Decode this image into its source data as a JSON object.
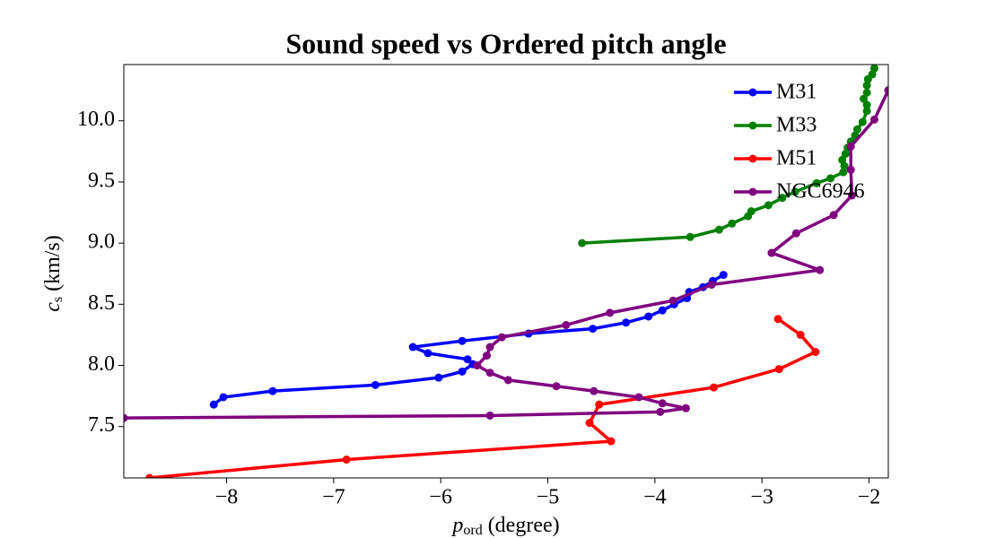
{
  "chart_data": {
    "type": "line",
    "title": "Sound speed vs Ordered pitch angle",
    "xlabel_symbol": "p",
    "xlabel_subscript": "ord",
    "xlabel_unit": "(degree)",
    "ylabel_symbol": "c",
    "ylabel_subscript": "s",
    "ylabel_unit": "(km/s)",
    "xlim": [
      -8.96,
      -1.82
    ],
    "ylim": [
      7.08,
      10.46
    ],
    "xticks": [
      {
        "value": -8,
        "label": "−8"
      },
      {
        "value": -7,
        "label": "−7"
      },
      {
        "value": -6,
        "label": "−6"
      },
      {
        "value": -5,
        "label": "−5"
      },
      {
        "value": -4,
        "label": "−4"
      },
      {
        "value": -3,
        "label": "−3"
      },
      {
        "value": -2,
        "label": "−2"
      }
    ],
    "yticks": [
      7.5,
      {
        "value": 8,
        "label": "8.0"
      },
      8.5,
      {
        "value": 9,
        "label": "9.0"
      },
      9.5,
      {
        "value": 10,
        "label": "10.0"
      }
    ],
    "grid": false,
    "legend": "upper right",
    "series": [
      {
        "name": "M31",
        "color": "#0000ff",
        "x": [
          -8.12,
          -8.03,
          -7.57,
          -6.61,
          -6.02,
          -5.8,
          -5.7,
          -5.75,
          -6.12,
          -6.26,
          -5.8,
          -5.18,
          -4.58,
          -4.27,
          -4.06,
          -3.93,
          -3.82,
          -3.7,
          -3.68,
          -3.55,
          -3.46,
          -3.36
        ],
        "values": [
          7.68,
          7.74,
          7.79,
          7.84,
          7.9,
          7.95,
          8.01,
          8.05,
          8.1,
          8.15,
          8.2,
          8.26,
          8.3,
          8.35,
          8.4,
          8.45,
          8.5,
          8.55,
          8.6,
          8.64,
          8.69,
          8.74
        ]
      },
      {
        "name": "M33",
        "color": "#008000",
        "x": [
          -4.68,
          -3.67,
          -3.4,
          -3.28,
          -3.13,
          -3.1,
          -2.94,
          -2.81,
          -2.69,
          -2.49,
          -2.36,
          -2.24,
          -2.23,
          -2.25,
          -2.22,
          -2.2,
          -2.17,
          -2.13,
          -2.11,
          -2.06,
          -2.02,
          -2.02,
          -2.05,
          -2.02,
          -2.02,
          -2.01,
          -1.97,
          -1.95
        ],
        "values": [
          9.0,
          9.05,
          9.11,
          9.16,
          9.22,
          9.26,
          9.31,
          9.37,
          9.42,
          9.49,
          9.53,
          9.58,
          9.63,
          9.68,
          9.73,
          9.78,
          9.83,
          9.88,
          9.93,
          9.99,
          10.08,
          10.13,
          10.18,
          10.23,
          10.29,
          10.34,
          10.38,
          10.43
        ]
      },
      {
        "name": "M51",
        "color": "#ff0000",
        "x": [
          -8.72,
          -6.88,
          -4.41,
          -4.61,
          -4.52,
          -3.45,
          -2.84,
          -2.5,
          -2.64,
          -2.85
        ],
        "values": [
          7.08,
          7.23,
          7.38,
          7.53,
          7.68,
          7.82,
          7.97,
          8.11,
          8.25,
          8.38
        ]
      },
      {
        "name": "NGC6946",
        "color": "#800080",
        "x": [
          -8.96,
          -5.54,
          -3.95,
          -3.71,
          -3.93,
          -4.15,
          -4.57,
          -4.92,
          -5.37,
          -5.54,
          -5.66,
          -5.57,
          -5.54,
          -5.43,
          -4.83,
          -4.42,
          -3.83,
          -3.47,
          -2.46,
          -2.91,
          -2.68,
          -2.33,
          -2.16,
          -2.17,
          -2.17,
          -1.95,
          -1.82
        ],
        "values": [
          7.57,
          7.59,
          7.62,
          7.65,
          7.69,
          7.74,
          7.79,
          7.83,
          7.88,
          7.94,
          8.0,
          8.08,
          8.15,
          8.23,
          8.33,
          8.43,
          8.53,
          8.66,
          8.78,
          8.92,
          9.08,
          9.23,
          9.39,
          9.6,
          9.79,
          10.01,
          10.25
        ]
      }
    ]
  }
}
